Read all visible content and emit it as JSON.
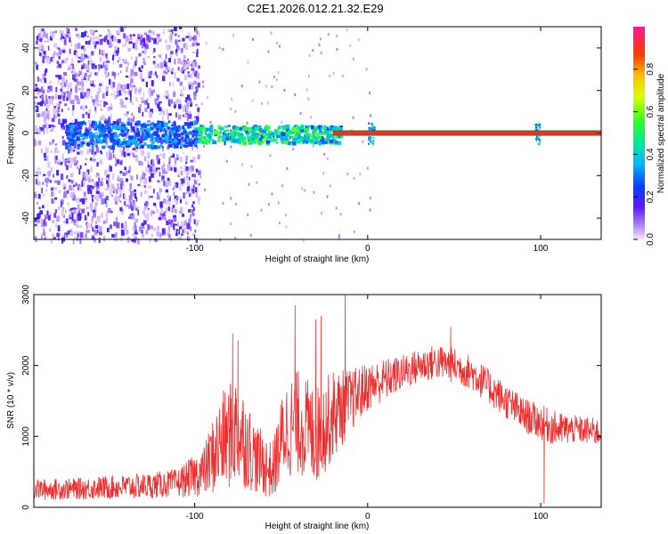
{
  "title": "C2E1.2026.012.21.32.E29",
  "colors": {
    "snr_line": "#ee2e2e",
    "band_red": "#ff2a2a",
    "band_green": "#1a7a20"
  },
  "chart_data": [
    {
      "type": "heatmap",
      "title": "C2E1.2026.012.21.32.E29",
      "xlabel": "Height of straight line (km)",
      "ylabel": "Frequency (Hz)",
      "xlim": [
        -193,
        135
      ],
      "ylim": [
        -50,
        50
      ],
      "xticks": [
        -100,
        0,
        100
      ],
      "yticks": [
        -40,
        -20,
        0,
        20,
        40
      ],
      "colorbar": {
        "label": "Normalized spectral amplitude",
        "range": [
          0,
          1
        ],
        "ticks": [
          0.0,
          0.2,
          0.4,
          0.6,
          0.8
        ],
        "colormap": "rainbow"
      },
      "signal_band": {
        "frequency_hz": 0,
        "from_km": -20,
        "to_km": 135,
        "amplitude": 1.0
      },
      "noise_region_km": [
        -193,
        -98
      ]
    },
    {
      "type": "line",
      "xlabel": "Height of straight line (km)",
      "ylabel": "SNR (10 * v/v)",
      "xlim": [
        -193,
        135
      ],
      "ylim": [
        0,
        3000
      ],
      "xticks": [
        -100,
        0,
        100
      ],
      "yticks": [
        0,
        1000,
        2000,
        3000
      ],
      "envelope": {
        "x": [
          -193,
          -170,
          -150,
          -130,
          -110,
          -95,
          -85,
          -75,
          -65,
          -55,
          -48,
          -40,
          -30,
          -20,
          -10,
          0,
          10,
          20,
          30,
          40,
          50,
          60,
          70,
          80,
          90,
          100,
          110,
          120,
          135
        ],
        "mean": [
          250,
          260,
          280,
          300,
          340,
          500,
          900,
          1100,
          700,
          500,
          1100,
          1200,
          1000,
          1300,
          1500,
          1700,
          1800,
          1900,
          2000,
          2050,
          2000,
          1900,
          1700,
          1500,
          1300,
          1200,
          1100,
          1100,
          1050
        ],
        "spread": [
          150,
          150,
          170,
          180,
          200,
          350,
          700,
          800,
          500,
          400,
          700,
          750,
          700,
          650,
          450,
          350,
          300,
          250,
          250,
          250,
          250,
          250,
          250,
          250,
          250,
          250,
          250,
          200,
          200
        ]
      },
      "spikes": [
        {
          "x": -78,
          "y": 2450
        },
        {
          "x": -75,
          "y": 2350
        },
        {
          "x": -42,
          "y": 2850
        },
        {
          "x": -30,
          "y": 2650
        },
        {
          "x": -27,
          "y": 2700
        },
        {
          "x": -13,
          "y": 3000
        },
        {
          "x": 48,
          "y": 2550
        },
        {
          "x": 102,
          "y": 50
        }
      ]
    }
  ]
}
